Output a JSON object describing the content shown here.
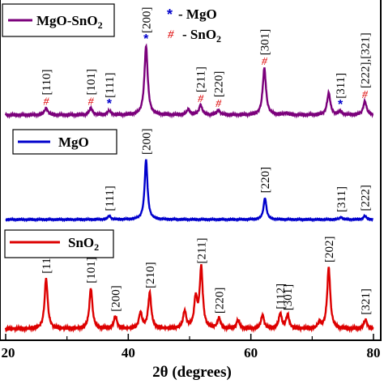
{
  "chart_data": {
    "type": "line",
    "xlabel": "2θ (degrees)",
    "xlim": [
      20,
      80
    ],
    "x_ticks": [
      "20",
      "40",
      "60",
      "80"
    ],
    "grid": false,
    "colors": {
      "MgO-SnO2": "#7b007b",
      "MgO": "#0000cc",
      "SnO2": "#dd0000",
      "mgo_marker": "#0000cc",
      "sno2_marker": "#dd0000"
    },
    "marker_legend": [
      {
        "symbol": "*",
        "label": "- MgO"
      },
      {
        "symbol": "#",
        "label": "- SnO2"
      }
    ],
    "series": [
      {
        "name": "MgO-SnO2",
        "legend": "MgO-SnO2",
        "peaks": [
          {
            "x": 26.6,
            "h": 0.1,
            "label": "[110]",
            "marker": "#"
          },
          {
            "x": 33.9,
            "h": 0.1,
            "label": "[101]",
            "marker": "#"
          },
          {
            "x": 36.9,
            "h": 0.06,
            "label": "[111]",
            "marker": "*"
          },
          {
            "x": 42.9,
            "h": 1.0,
            "label": "[200]",
            "marker": "*"
          },
          {
            "x": 49.8,
            "h": 0.08,
            "label": "",
            "marker": ""
          },
          {
            "x": 51.8,
            "h": 0.14,
            "label": "[211]",
            "marker": "#"
          },
          {
            "x": 54.7,
            "h": 0.07,
            "label": "[220]",
            "marker": "#"
          },
          {
            "x": 62.2,
            "h": 0.68,
            "label": "[301]",
            "marker": "#"
          },
          {
            "x": 65.8,
            "h": 0.03,
            "label": "",
            "marker": ""
          },
          {
            "x": 72.7,
            "h": 0.32,
            "label": "",
            "marker": ""
          },
          {
            "x": 74.6,
            "h": 0.05,
            "label": "[311]",
            "marker": "*"
          },
          {
            "x": 78.6,
            "h": 0.2,
            "label": "[222],[321]",
            "marker": "#"
          }
        ]
      },
      {
        "name": "MgO",
        "legend": "MgO",
        "peaks": [
          {
            "x": 36.9,
            "h": 0.06,
            "label": "[111]",
            "marker": ""
          },
          {
            "x": 42.9,
            "h": 1.0,
            "label": "[200]",
            "marker": ""
          },
          {
            "x": 62.3,
            "h": 0.36,
            "label": "[220]",
            "marker": ""
          },
          {
            "x": 74.7,
            "h": 0.04,
            "label": "[311]",
            "marker": ""
          },
          {
            "x": 78.6,
            "h": 0.06,
            "label": "[222]",
            "marker": ""
          }
        ]
      },
      {
        "name": "SnO2",
        "legend": "SnO2",
        "peaks": [
          {
            "x": 26.6,
            "h": 0.82,
            "label": "[110]",
            "marker": ""
          },
          {
            "x": 33.9,
            "h": 0.66,
            "label": "[101]",
            "marker": ""
          },
          {
            "x": 37.9,
            "h": 0.2,
            "label": "[200]",
            "marker": ""
          },
          {
            "x": 42.0,
            "h": 0.26,
            "label": "",
            "marker": ""
          },
          {
            "x": 43.5,
            "h": 0.58,
            "label": "[210]",
            "marker": ""
          },
          {
            "x": 49.2,
            "h": 0.28,
            "label": "",
            "marker": ""
          },
          {
            "x": 51.0,
            "h": 0.48,
            "label": "",
            "marker": ""
          },
          {
            "x": 51.9,
            "h": 0.98,
            "label": "[211]",
            "marker": ""
          },
          {
            "x": 54.8,
            "h": 0.17,
            "label": "[220]",
            "marker": ""
          },
          {
            "x": 57.9,
            "h": 0.14,
            "label": "",
            "marker": ""
          },
          {
            "x": 61.9,
            "h": 0.22,
            "label": "",
            "marker": ""
          },
          {
            "x": 64.8,
            "h": 0.24,
            "label": "[112]",
            "marker": ""
          },
          {
            "x": 66.0,
            "h": 0.22,
            "label": "[301]",
            "marker": ""
          },
          {
            "x": 71.2,
            "h": 0.1,
            "label": "",
            "marker": ""
          },
          {
            "x": 72.7,
            "h": 1.0,
            "label": "[202]",
            "marker": ""
          },
          {
            "x": 78.7,
            "h": 0.15,
            "label": "[321]",
            "marker": ""
          }
        ]
      }
    ]
  }
}
